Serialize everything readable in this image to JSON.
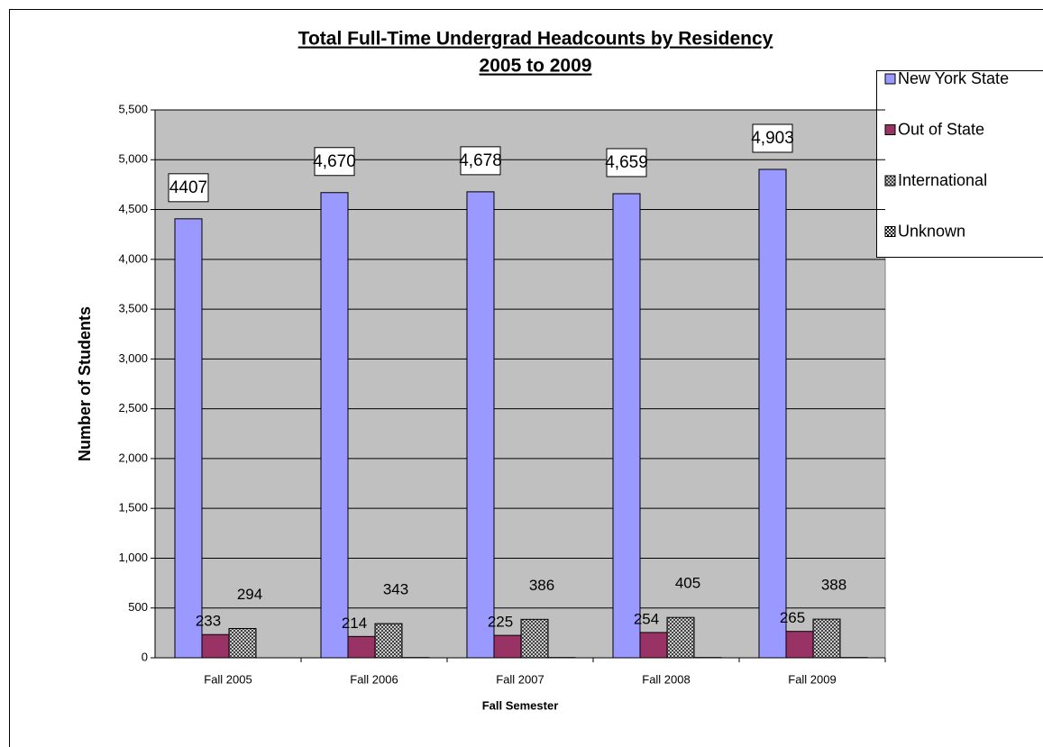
{
  "chart_data": {
    "type": "bar",
    "title": "Total Full-Time Undergrad Headcounts by Residency",
    "subtitle": "2005 to 2009",
    "x_label": "Fall Semester",
    "y_label": "Number of Students",
    "categories": [
      "Fall 2005",
      "Fall 2006",
      "Fall 2007",
      "Fall 2008",
      "Fall 2009"
    ],
    "series": [
      {
        "name": "New York State",
        "color": "#9999ff",
        "values": [
          4407,
          4670,
          4678,
          4659,
          4903
        ],
        "value_labels": [
          "4407",
          "4,670",
          "4,678",
          "4,659",
          "4,903"
        ]
      },
      {
        "name": "Out of State",
        "color": "#993366",
        "values": [
          233,
          214,
          225,
          254,
          265
        ]
      },
      {
        "name": "International",
        "color": "#808080",
        "pattern": "crosshatch",
        "values": [
          294,
          343,
          386,
          405,
          388
        ]
      },
      {
        "name": "Unknown",
        "color": "#333333",
        "pattern": "checker",
        "values": [
          0,
          3,
          3,
          3,
          3
        ]
      }
    ],
    "ylim": [
      0,
      5500
    ],
    "yticks": [
      0,
      500,
      {
        "value": 1000,
        "label": "1,000"
      },
      {
        "value": 1500,
        "label": "1,500"
      },
      {
        "value": 2000,
        "label": "2,000"
      },
      {
        "value": 2500,
        "label": "2,500"
      },
      {
        "value": 3000,
        "label": "3,000"
      },
      {
        "value": 3500,
        "label": "3,500"
      },
      {
        "value": 4000,
        "label": "4,000"
      },
      {
        "value": 4500,
        "label": "4,500"
      },
      {
        "value": 5000,
        "label": "5,000"
      },
      {
        "value": 5500,
        "label": "5,500"
      }
    ],
    "grid": true,
    "legend": "right"
  }
}
